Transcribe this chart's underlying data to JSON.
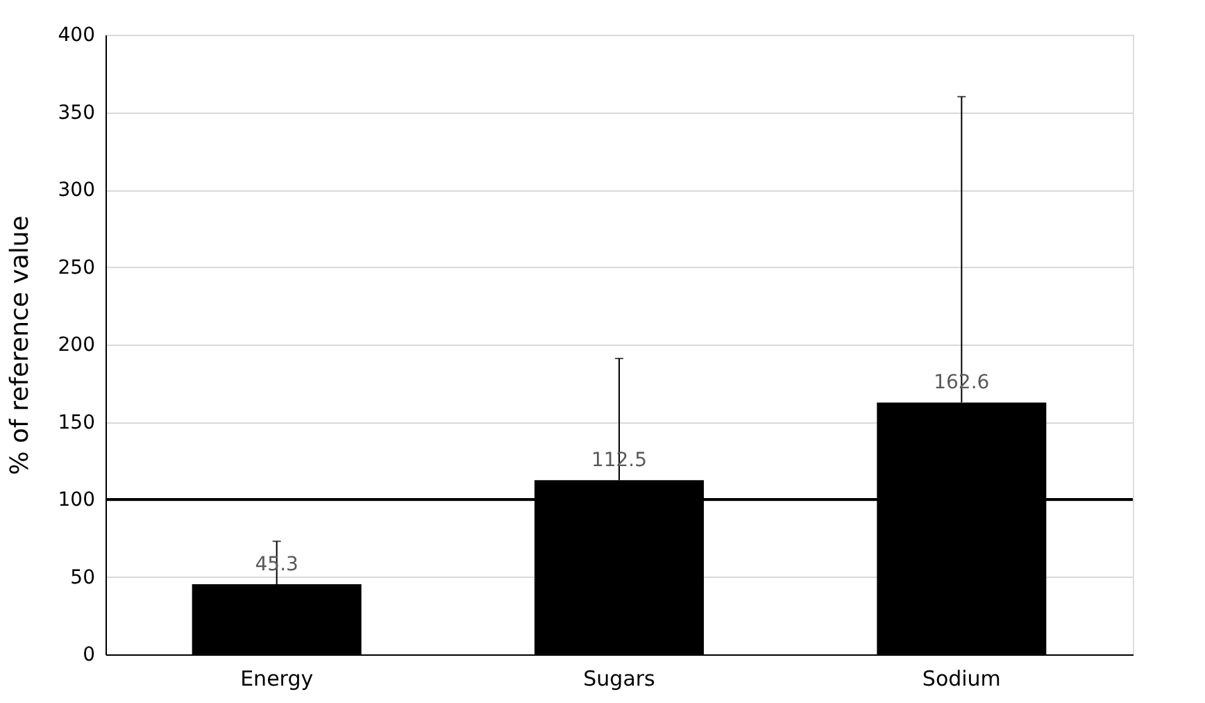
{
  "chart_data": {
    "type": "bar",
    "ylabel": "% of reference value",
    "categories": [
      "Energy",
      "Sugars",
      "Sodium"
    ],
    "values": [
      45.3,
      112.5,
      162.6
    ],
    "color": "#000000",
    "errors": [
      [
        45.3,
        73
      ],
      [
        112.5,
        191
      ],
      [
        162.6,
        360
      ]
    ],
    "data_labels": true,
    "ylim": [
      0,
      400
    ],
    "yticks": [
      0,
      50,
      100,
      150,
      200,
      250,
      300,
      350,
      400
    ],
    "grid": "y",
    "ref_lines": [
      {
        "axis": "y",
        "value": 100,
        "color": "#000000",
        "line_style": "solid"
      }
    ]
  }
}
